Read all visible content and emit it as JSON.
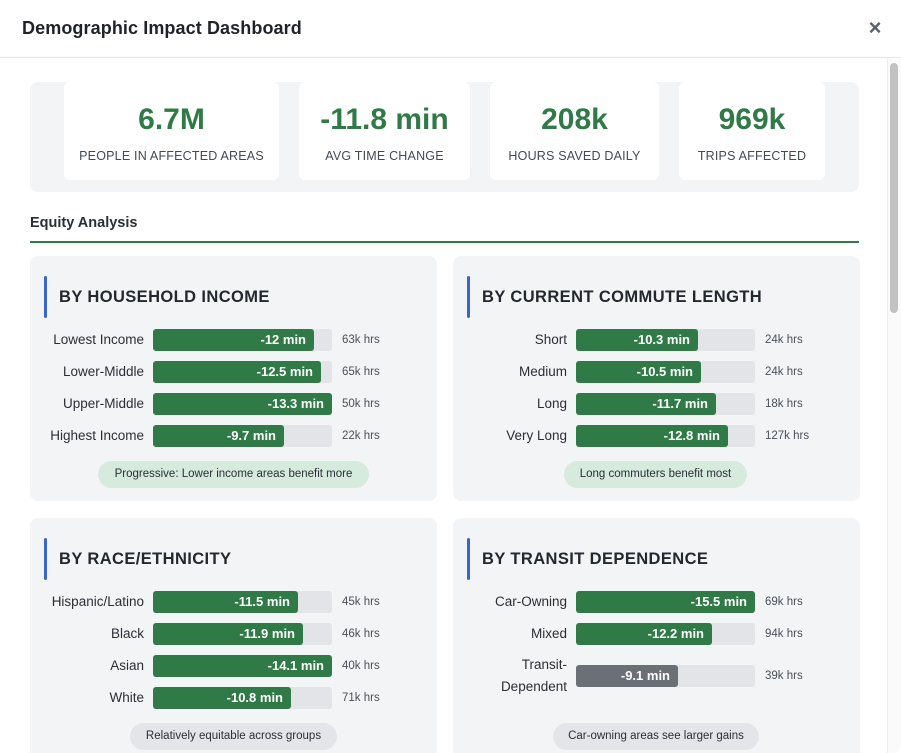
{
  "dialog": {
    "title": "Demographic Impact Dashboard",
    "close_label": "×"
  },
  "stats": [
    {
      "value": "6.7M",
      "label": "PEOPLE IN AFFECTED AREAS"
    },
    {
      "value": "-11.8 min",
      "label": "AVG TIME CHANGE"
    },
    {
      "value": "208k",
      "label": "HOURS SAVED DAILY"
    },
    {
      "value": "969k",
      "label": "TRIPS AFFECTED"
    }
  ],
  "section": {
    "title": "Equity Analysis"
  },
  "colors": {
    "accent": "#2f7a46",
    "card_border": "#3a65c9",
    "bar_gray": "#6b6f76"
  },
  "cards": [
    {
      "title": "BY HOUSEHOLD INCOME",
      "note": "Progressive: Lower income areas benefit more",
      "note_style": "green",
      "rows": [
        {
          "label": "Lowest Income",
          "value": "-12 min",
          "level": 0.9,
          "hours": "63k hrs",
          "color": "green"
        },
        {
          "label": "Lower-Middle",
          "value": "-12.5 min",
          "level": 0.94,
          "hours": "65k hrs",
          "color": "green"
        },
        {
          "label": "Upper-Middle",
          "value": "-13.3 min",
          "level": 1.0,
          "hours": "50k hrs",
          "color": "green"
        },
        {
          "label": "Highest Income",
          "value": "-9.7 min",
          "level": 0.73,
          "hours": "22k hrs",
          "color": "green"
        }
      ]
    },
    {
      "title": "BY CURRENT COMMUTE LENGTH",
      "note": "Long commuters benefit most",
      "note_style": "green",
      "rows": [
        {
          "label": "Short",
          "value": "-10.3 min",
          "level": 0.68,
          "hours": "24k hrs",
          "color": "green"
        },
        {
          "label": "Medium",
          "value": "-10.5 min",
          "level": 0.7,
          "hours": "24k hrs",
          "color": "green"
        },
        {
          "label": "Long",
          "value": "-11.7 min",
          "level": 0.78,
          "hours": "18k hrs",
          "color": "green"
        },
        {
          "label": "Very Long",
          "value": "-12.8 min",
          "level": 0.85,
          "hours": "127k hrs",
          "color": "green"
        }
      ]
    },
    {
      "title": "BY RACE/ETHNICITY",
      "note": "Relatively equitable across groups",
      "note_style": "gray",
      "rows": [
        {
          "label": "Hispanic/Latino",
          "value": "-11.5 min",
          "level": 0.81,
          "hours": "45k hrs",
          "color": "green"
        },
        {
          "label": "Black",
          "value": "-11.9 min",
          "level": 0.84,
          "hours": "46k hrs",
          "color": "green"
        },
        {
          "label": "Asian",
          "value": "-14.1 min",
          "level": 1.0,
          "hours": "40k hrs",
          "color": "green"
        },
        {
          "label": "White",
          "value": "-10.8 min",
          "level": 0.77,
          "hours": "71k hrs",
          "color": "green"
        }
      ]
    },
    {
      "title": "BY TRANSIT DEPENDENCE",
      "note": "Car-owning areas see larger gains",
      "note_style": "gray",
      "rows": [
        {
          "label": "Car-Owning",
          "value": "-15.5 min",
          "level": 1.0,
          "hours": "69k hrs",
          "color": "green"
        },
        {
          "label": "Mixed",
          "value": "-12.2 min",
          "level": 0.76,
          "hours": "94k hrs",
          "color": "green"
        },
        {
          "label": "Transit-Dependent",
          "value": "-9.1 min",
          "level": 0.57,
          "hours": "39k hrs",
          "color": "gray",
          "label_lines": [
            "Transit-",
            "Dependent"
          ]
        }
      ]
    }
  ]
}
